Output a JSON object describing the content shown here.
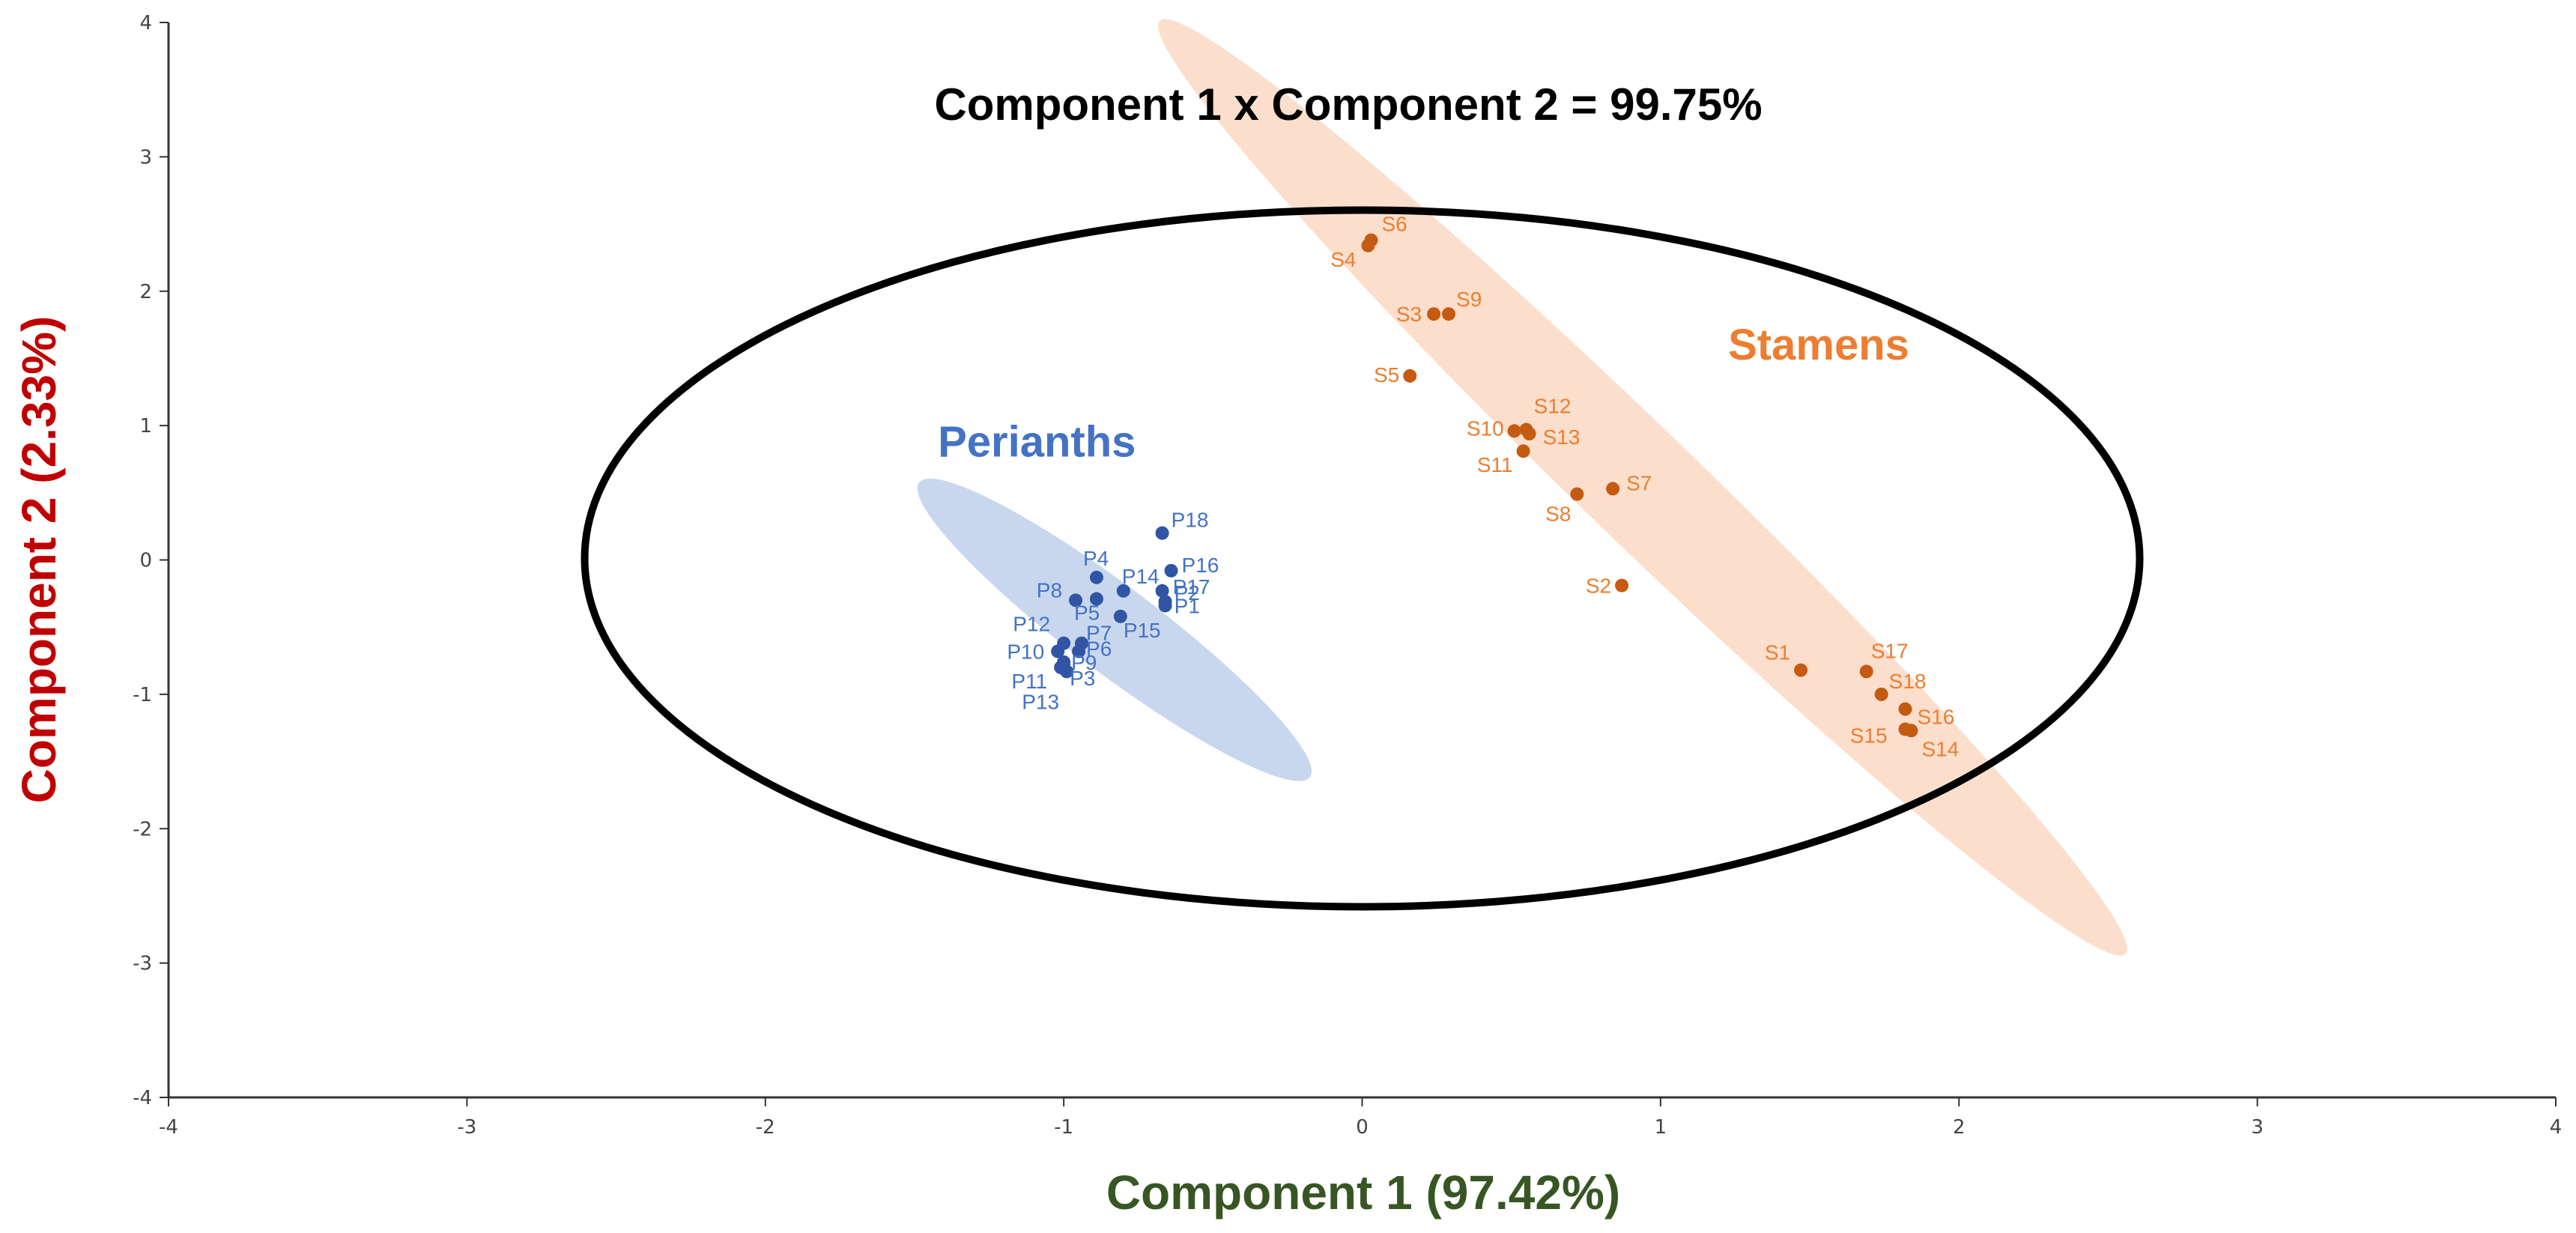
{
  "chart_data": {
    "type": "scatter",
    "title": "Component 1 x Component 2 = 99.75%",
    "xlabel": "Component 1 (97.42%)",
    "ylabel": "Component 2 (2.33%)",
    "xlim": [
      -4,
      4
    ],
    "ylim": [
      -4,
      4
    ],
    "xticks": [
      "-4",
      "-3",
      "-2",
      "-1",
      "0",
      "1",
      "2",
      "3",
      "4"
    ],
    "yticks": [
      "4",
      "3",
      "2",
      "1",
      "0",
      "-1",
      "-2",
      "-3",
      "-4"
    ],
    "grid": false,
    "colors": {
      "title": "#000000",
      "xlabel": "#375623",
      "ylabel": "#C00000",
      "perianths_point": "#2F55A4",
      "perianths_label": "#4472C4",
      "perianths_region": "#B4C7E7",
      "stamens_point": "#C55A11",
      "stamens_label": "#ED7D31",
      "stamens_region": "#F8CBAD",
      "confidence_ellipse": "#000000"
    },
    "groups": {
      "perianths": "Perianths",
      "stamens": "Stamens"
    },
    "series": [
      {
        "name": "Perianths",
        "points": [
          {
            "label": "P1",
            "x": -0.66,
            "y": -0.34
          },
          {
            "label": "P2",
            "x": -0.66,
            "y": -0.31
          },
          {
            "label": "P3",
            "x": -1.0,
            "y": -0.79
          },
          {
            "label": "P4",
            "x": -0.89,
            "y": -0.13
          },
          {
            "label": "P5",
            "x": -0.89,
            "y": -0.29
          },
          {
            "label": "P6",
            "x": -0.95,
            "y": -0.68
          },
          {
            "label": "P7",
            "x": -0.94,
            "y": -0.62
          },
          {
            "label": "P8",
            "x": -0.96,
            "y": -0.3
          },
          {
            "label": "P9",
            "x": -1.0,
            "y": -0.76
          },
          {
            "label": "P10",
            "x": -1.02,
            "y": -0.68
          },
          {
            "label": "P11",
            "x": -1.01,
            "y": -0.8
          },
          {
            "label": "P12",
            "x": -1.0,
            "y": -0.62
          },
          {
            "label": "P13",
            "x": -0.99,
            "y": -0.83
          },
          {
            "label": "P14",
            "x": -0.8,
            "y": -0.23
          },
          {
            "label": "P15",
            "x": -0.81,
            "y": -0.42
          },
          {
            "label": "P16",
            "x": -0.64,
            "y": -0.08
          },
          {
            "label": "P17",
            "x": -0.67,
            "y": -0.23
          },
          {
            "label": "P18",
            "x": -0.67,
            "y": 0.2
          }
        ]
      },
      {
        "name": "Stamens",
        "points": [
          {
            "label": "S1",
            "x": 1.47,
            "y": -0.82
          },
          {
            "label": "S2",
            "x": 0.87,
            "y": -0.19
          },
          {
            "label": "S3",
            "x": 0.24,
            "y": 1.83
          },
          {
            "label": "S4",
            "x": 0.02,
            "y": 2.34
          },
          {
            "label": "S5",
            "x": 0.16,
            "y": 1.37
          },
          {
            "label": "S6",
            "x": 0.03,
            "y": 2.38
          },
          {
            "label": "S7",
            "x": 0.84,
            "y": 0.53
          },
          {
            "label": "S8",
            "x": 0.72,
            "y": 0.49
          },
          {
            "label": "S9",
            "x": 0.29,
            "y": 1.83
          },
          {
            "label": "S10",
            "x": 0.51,
            "y": 0.96
          },
          {
            "label": "S11",
            "x": 0.54,
            "y": 0.81
          },
          {
            "label": "S12",
            "x": 0.55,
            "y": 0.97
          },
          {
            "label": "S13",
            "x": 0.56,
            "y": 0.94
          },
          {
            "label": "S14",
            "x": 1.84,
            "y": -1.27
          },
          {
            "label": "S15",
            "x": 1.82,
            "y": -1.26
          },
          {
            "label": "S16",
            "x": 1.82,
            "y": -1.11
          },
          {
            "label": "S17",
            "x": 1.69,
            "y": -0.83
          },
          {
            "label": "S18",
            "x": 1.74,
            "y": -1.0
          }
        ]
      }
    ],
    "regions": [
      {
        "name": "Perianths",
        "cx": -0.83,
        "cy": -0.52,
        "rx": 0.82,
        "ry": 0.28,
        "angle_deg": 37
      },
      {
        "name": "Stamens",
        "cx": 0.94,
        "cy": 0.54,
        "rx": 2.25,
        "ry": 0.37,
        "angle_deg": 44
      },
      {
        "name": "confidence",
        "cx": 0.0,
        "cy": 0.0,
        "rx": 2.6,
        "ry": 2.6,
        "angle_deg": 0
      }
    ],
    "annotations": [
      {
        "text": "Perianths",
        "x": -1.09,
        "y": 0.77
      },
      {
        "text": "Stamens",
        "x": 1.53,
        "y": 1.49
      }
    ]
  }
}
